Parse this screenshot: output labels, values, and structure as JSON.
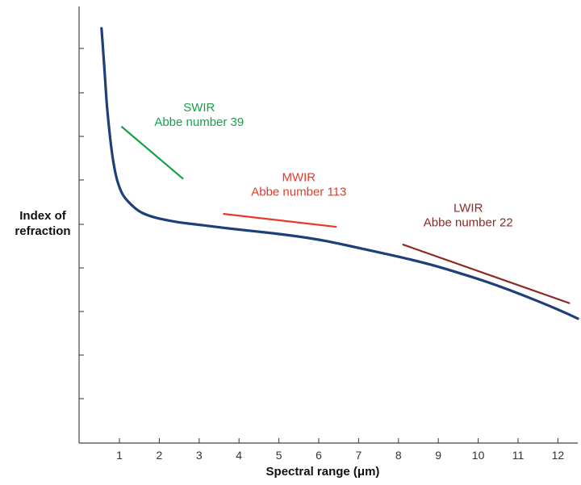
{
  "chart_data": {
    "type": "line",
    "title": "",
    "xlabel": "Spectral range (μm)",
    "ylabel": "Index of refraction",
    "xlim": [
      0,
      12.5
    ],
    "ylim": [
      0,
      10
    ],
    "x_ticks": [
      "1",
      "2",
      "3",
      "4",
      "5",
      "6",
      "7",
      "8",
      "9",
      "10",
      "11",
      "12"
    ],
    "y_tick_count": 8,
    "y_tick_labels_shown": false,
    "grid": false,
    "series": [
      {
        "name": "",
        "color": "#1d3f7a",
        "points": [
          [
            0.55,
            9.5
          ],
          [
            0.6,
            8.9
          ],
          [
            0.65,
            8.2
          ],
          [
            0.7,
            7.55
          ],
          [
            0.8,
            6.7
          ],
          [
            0.9,
            6.15
          ],
          [
            1.0,
            5.85
          ],
          [
            1.1,
            5.65
          ],
          [
            1.3,
            5.45
          ],
          [
            1.5,
            5.3
          ],
          [
            1.75,
            5.2
          ],
          [
            2.0,
            5.14
          ],
          [
            2.5,
            5.05
          ],
          [
            3.0,
            5.0
          ],
          [
            3.5,
            4.94
          ],
          [
            4.0,
            4.89
          ],
          [
            4.5,
            4.84
          ],
          [
            5.0,
            4.79
          ],
          [
            5.5,
            4.73
          ],
          [
            6.0,
            4.66
          ],
          [
            6.5,
            4.57
          ],
          [
            7.0,
            4.47
          ],
          [
            7.5,
            4.37
          ],
          [
            8.0,
            4.27
          ],
          [
            8.5,
            4.16
          ],
          [
            9.0,
            4.04
          ],
          [
            9.5,
            3.9
          ],
          [
            10.0,
            3.76
          ],
          [
            10.5,
            3.6
          ],
          [
            11.0,
            3.43
          ],
          [
            11.5,
            3.25
          ],
          [
            12.0,
            3.06
          ],
          [
            12.5,
            2.85
          ]
        ]
      }
    ],
    "annotations": [
      {
        "band": "SWIR",
        "text": "Abbe number 39",
        "color": "#1aa04b",
        "segment": [
          [
            1.05,
            7.25
          ],
          [
            2.6,
            6.05
          ]
        ],
        "label_pos": [
          3.0,
          7.6
        ]
      },
      {
        "band": "MWIR",
        "text": "Abbe number 113",
        "color": "#e8382a",
        "segment": [
          [
            3.6,
            5.25
          ],
          [
            6.45,
            4.95
          ]
        ],
        "label_pos": [
          5.5,
          6.0
        ]
      },
      {
        "band": "LWIR",
        "text": "Abbe number 22",
        "color": "#8c2a22",
        "segment": [
          [
            8.1,
            4.55
          ],
          [
            12.3,
            3.2
          ]
        ],
        "label_pos": [
          9.75,
          5.3
        ]
      }
    ]
  }
}
